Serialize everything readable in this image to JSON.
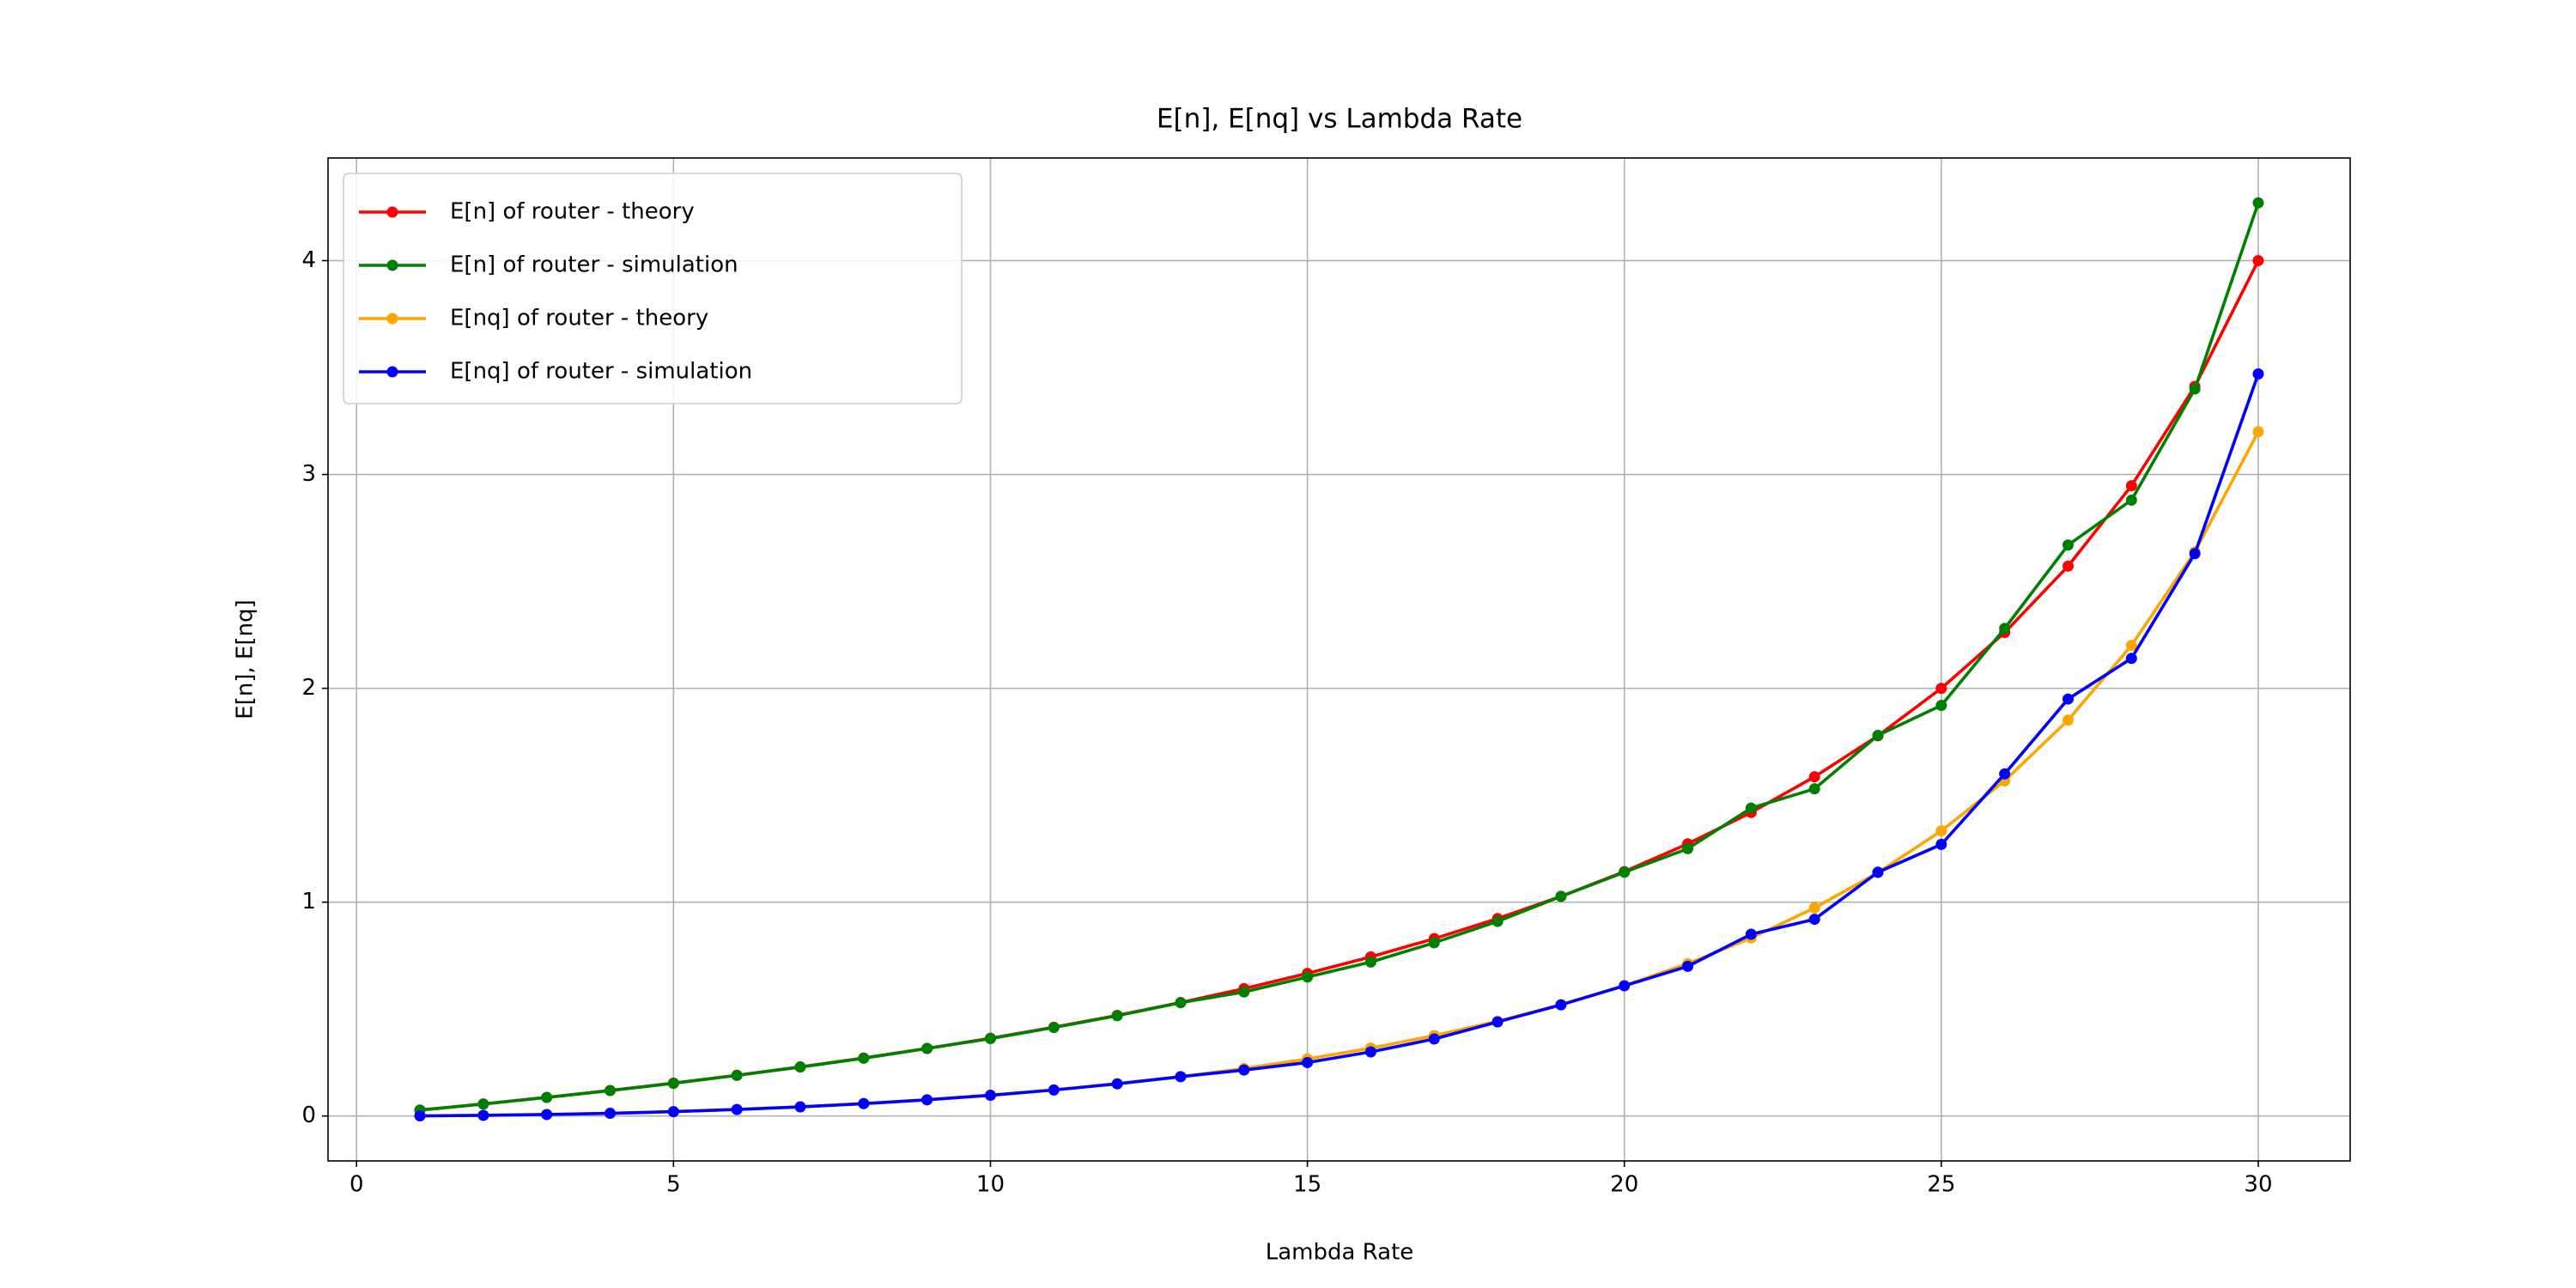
{
  "chart_data": {
    "type": "line",
    "title": "E[n], E[nq] vs Lambda Rate",
    "xlabel": "Lambda Rate",
    "ylabel": "E[n], E[nq]",
    "x": [
      1,
      2,
      3,
      4,
      5,
      6,
      7,
      8,
      9,
      10,
      11,
      12,
      13,
      14,
      15,
      16,
      17,
      18,
      19,
      20,
      21,
      22,
      23,
      24,
      25,
      26,
      27,
      28,
      29,
      30
    ],
    "series": [
      {
        "name": "E[n] of router - theory",
        "color": "#ff0000",
        "values": [
          0.0274,
          0.0563,
          0.087,
          0.1194,
          0.1538,
          0.1905,
          0.2295,
          0.2712,
          0.3158,
          0.3636,
          0.4151,
          0.4706,
          0.5306,
          0.5957,
          0.6667,
          0.7442,
          0.8293,
          0.9231,
          1.027,
          1.1429,
          1.2727,
          1.4194,
          1.5862,
          1.7778,
          2.0,
          2.2609,
          2.5714,
          2.9474,
          3.4118,
          4.0
        ]
      },
      {
        "name": "E[n] of router - simulation",
        "color": "#008000",
        "values": [
          0.028,
          0.056,
          0.087,
          0.119,
          0.153,
          0.19,
          0.229,
          0.27,
          0.316,
          0.362,
          0.414,
          0.469,
          0.53,
          0.58,
          0.65,
          0.72,
          0.81,
          0.91,
          1.027,
          1.14,
          1.25,
          1.44,
          1.53,
          1.78,
          1.92,
          2.28,
          2.67,
          2.88,
          3.4,
          4.27
        ]
      },
      {
        "name": "E[nq] of router - theory",
        "color": "#ffa500",
        "values": [
          0.0007,
          0.003,
          0.007,
          0.0127,
          0.0205,
          0.0305,
          0.0428,
          0.0579,
          0.0758,
          0.097,
          0.1218,
          0.1506,
          0.1839,
          0.2224,
          0.2667,
          0.3175,
          0.376,
          0.4431,
          0.5203,
          0.6095,
          0.7127,
          0.8327,
          0.9729,
          1.1378,
          1.3333,
          1.5675,
          1.8514,
          2.2007,
          2.6384,
          3.2
        ]
      },
      {
        "name": "E[nq] of router - simulation",
        "color": "#0000ff",
        "values": [
          0.0007,
          0.003,
          0.007,
          0.0127,
          0.0205,
          0.0305,
          0.0428,
          0.0579,
          0.0758,
          0.097,
          0.1218,
          0.1506,
          0.1839,
          0.215,
          0.25,
          0.3,
          0.36,
          0.44,
          0.52,
          0.609,
          0.7,
          0.85,
          0.92,
          1.14,
          1.27,
          1.6,
          1.95,
          2.14,
          2.63,
          3.47
        ]
      }
    ],
    "xlim": [
      -0.45,
      31.45
    ],
    "xticks": [
      0,
      5,
      10,
      15,
      20,
      25,
      30
    ],
    "ylim": [
      -0.21,
      4.48
    ],
    "yticks": [
      0,
      1,
      2,
      3,
      4
    ],
    "grid": true,
    "legend": "upper left"
  }
}
